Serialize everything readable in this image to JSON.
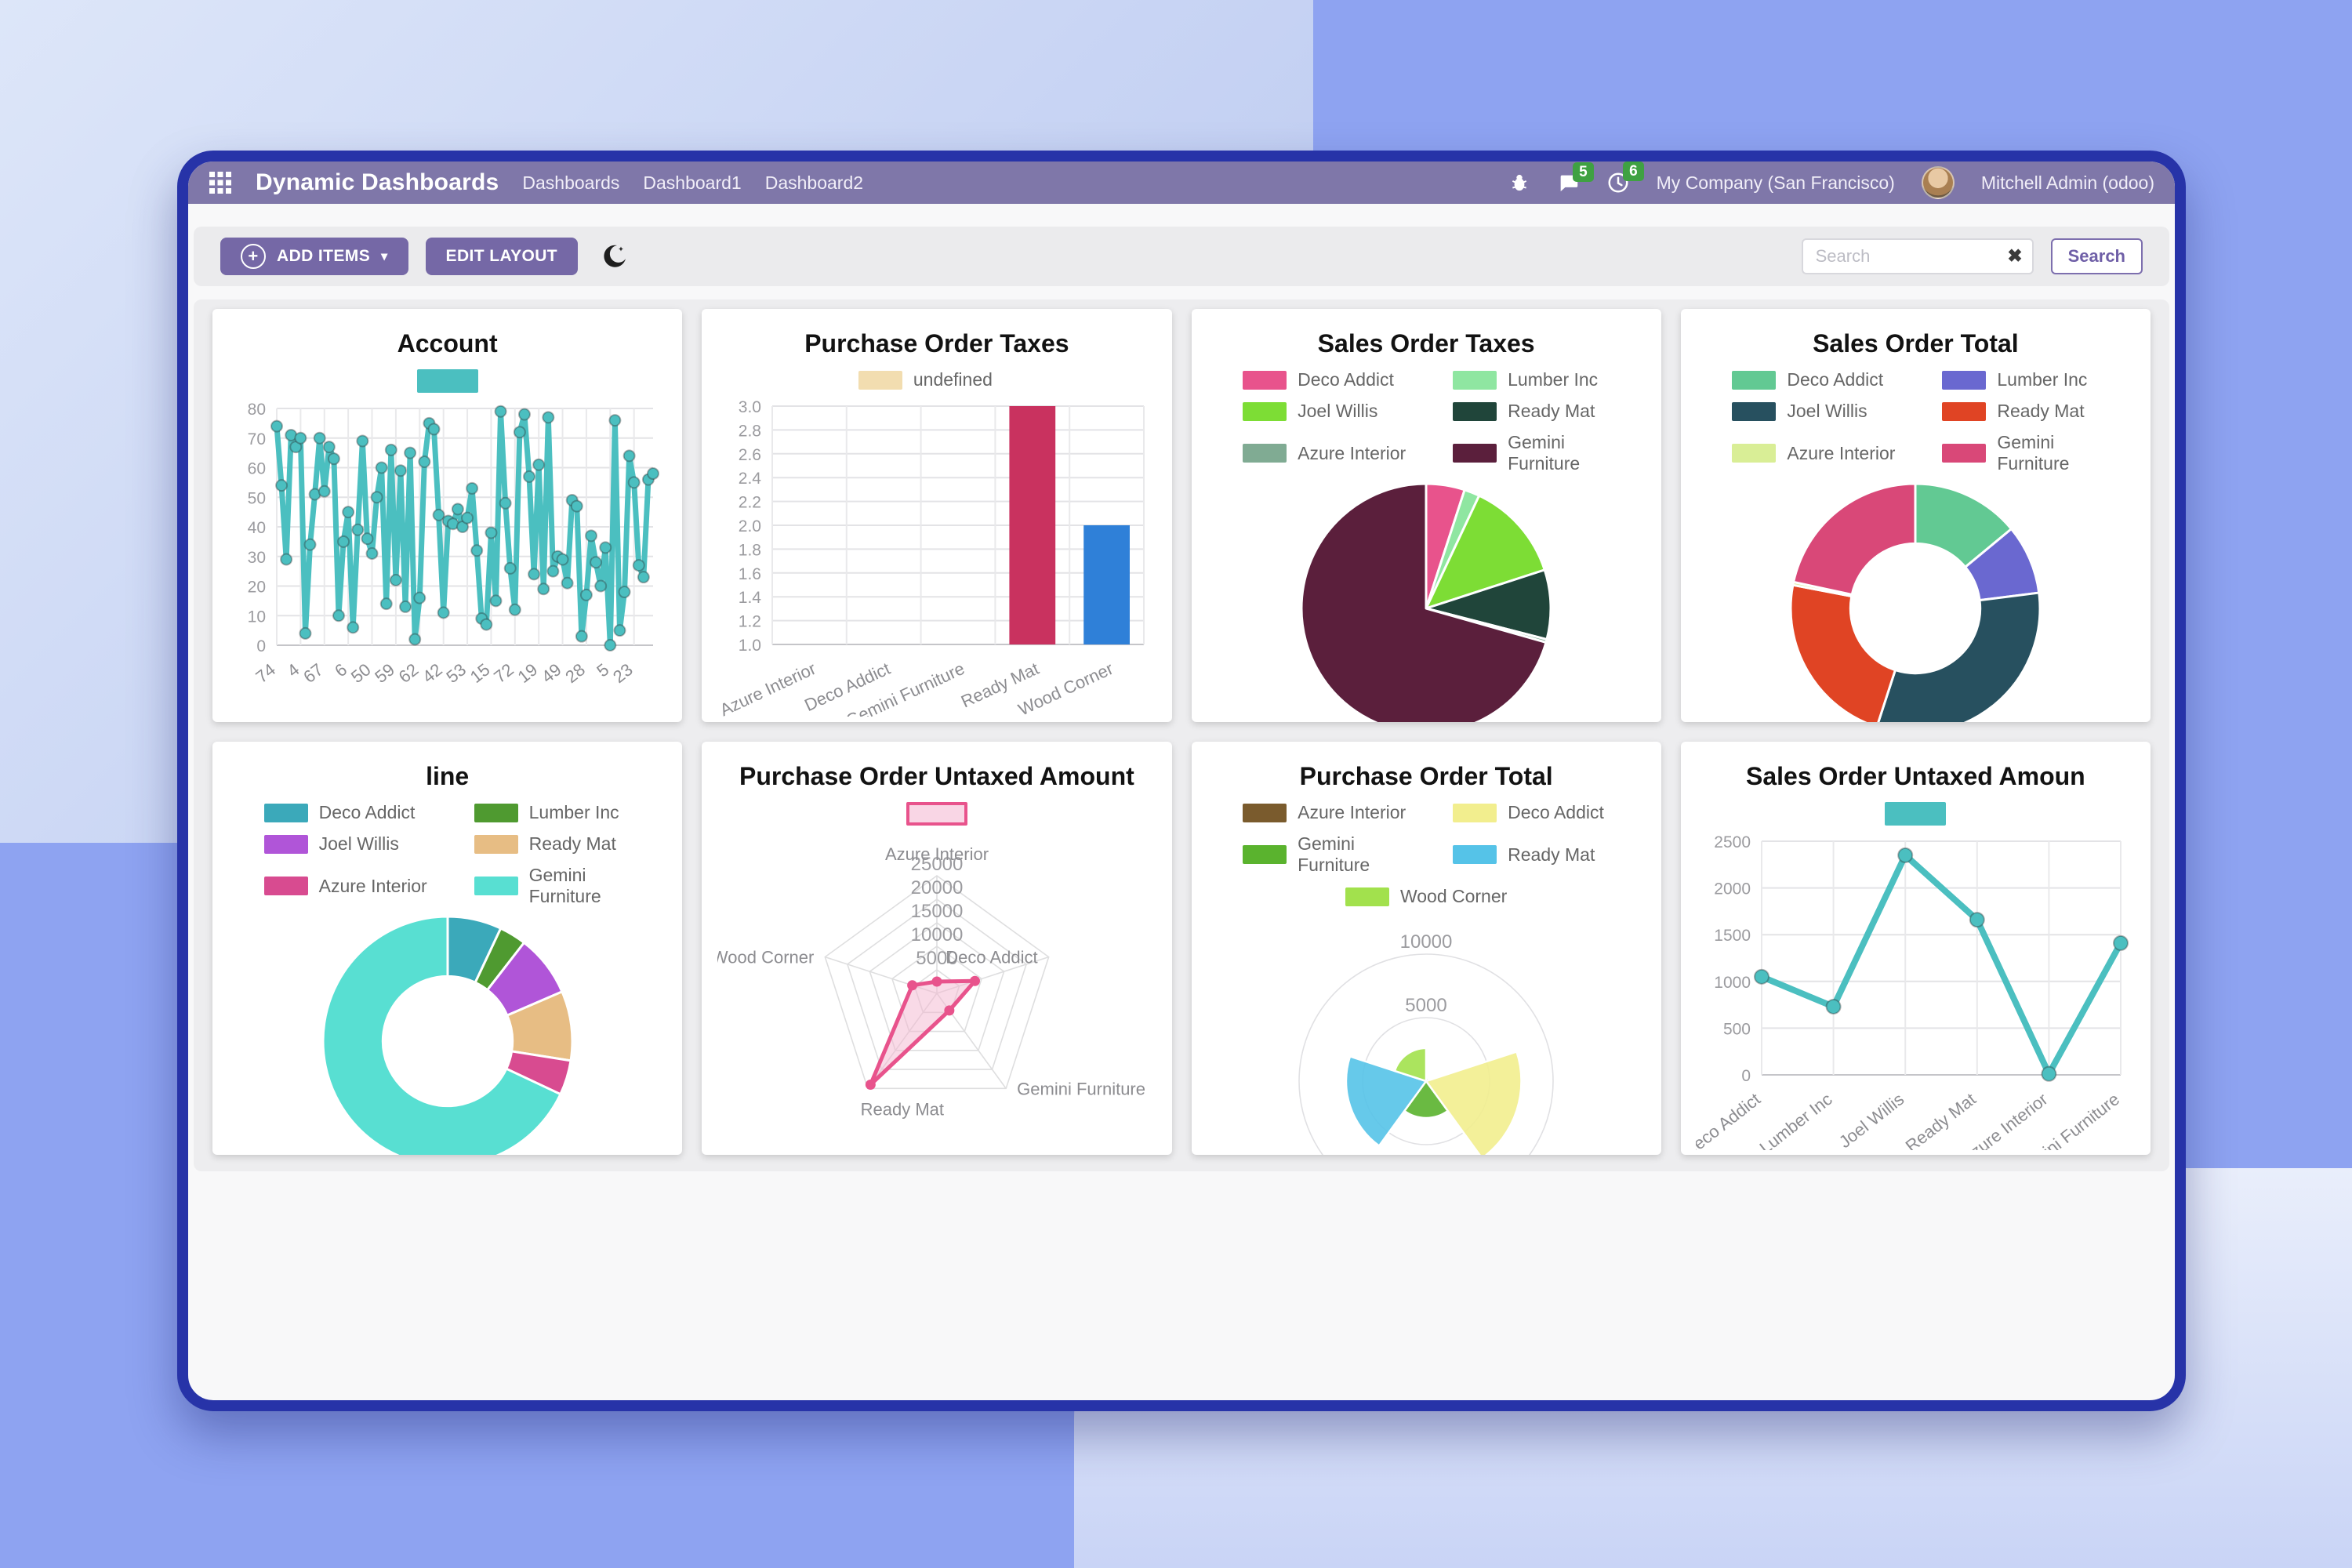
{
  "navbar": {
    "brand": "Dynamic Dashboards",
    "links": [
      "Dashboards",
      "Dashboard1",
      "Dashboard2"
    ],
    "badges": {
      "messages": "5",
      "activities": "6"
    },
    "company": "My Company (San Francisco)",
    "user": "Mitchell Admin (odoo)"
  },
  "toolbar": {
    "add_items": "ADD ITEMS",
    "edit_layout": "EDIT LAYOUT",
    "search_placeholder": "Search",
    "search_button": "Search"
  },
  "icons": {
    "apps": "grid-3x3",
    "debug": "bug",
    "messages": "chat-bubble",
    "activities": "clock",
    "dark_mode": "moon",
    "add": "plus-circle",
    "caret": "caret-down",
    "search_clear": "x"
  },
  "colors": {
    "accent_purple": "#7568a6",
    "navbar": "#7f77a9",
    "window_border": "#2733a8",
    "teal": "#4bbfc0",
    "badge_green": "#3fa142"
  },
  "chart_data": [
    {
      "type": "line",
      "title": "Account",
      "legend": [
        {
          "label": "",
          "color": "#4bbfc0"
        }
      ],
      "color": "#4bbfc0",
      "ylim": [
        0,
        80
      ],
      "ystep": 10,
      "grid": true,
      "label_every": 5,
      "x_tick_labels": [
        "74",
        "4",
        "67",
        "6",
        "50",
        "59",
        "62",
        "42",
        "53",
        "15",
        "72",
        "19",
        "49",
        "28",
        "5",
        "23"
      ],
      "values": [
        74,
        54,
        29,
        71,
        67,
        70,
        4,
        34,
        51,
        70,
        52,
        67,
        63,
        10,
        35,
        45,
        6,
        39,
        69,
        36,
        31,
        50,
        60,
        14,
        66,
        22,
        59,
        13,
        65,
        2,
        16,
        62,
        75,
        73,
        44,
        11,
        42,
        41,
        46,
        40,
        43,
        53,
        32,
        9,
        7,
        38,
        15,
        79,
        48,
        26,
        12,
        72,
        78,
        57,
        24,
        61,
        19,
        77,
        25,
        30,
        29,
        21,
        49,
        47,
        3,
        17,
        37,
        28,
        20,
        33,
        0,
        76,
        5,
        18,
        64,
        55,
        27,
        23,
        56,
        58
      ]
    },
    {
      "type": "bar",
      "title": "Purchase Order Taxes",
      "legend": [
        {
          "label": "undefined",
          "color": "#f2ddb0"
        }
      ],
      "categories": [
        "Azure Interior",
        "Deco Addict",
        "Gemini Furniture",
        "Ready Mat",
        "Wood Corner"
      ],
      "values": [
        null,
        null,
        null,
        3,
        2
      ],
      "bar_colors": [
        "",
        "",
        "",
        "#c9325f",
        "#2f80d8"
      ],
      "ylim": [
        1.0,
        3.0
      ],
      "ystep": 0.2,
      "ydec": 1,
      "grid": true
    },
    {
      "type": "pie",
      "title": "Sales Order Taxes",
      "categories": [
        "Deco Addict",
        "Lumber Inc",
        "Joel Willis",
        "Ready Mat",
        "Azure Interior",
        "Gemini Furniture"
      ],
      "values": [
        5,
        2,
        13,
        9,
        0.4,
        70.6
      ],
      "colors": [
        "#e8538c",
        "#8fe6a1",
        "#7ddd35",
        "#20453a",
        "#80ab93",
        "#5b1f3c"
      ],
      "legend": [
        {
          "label": "Deco Addict",
          "color": "#e8538c"
        },
        {
          "label": "Lumber Inc",
          "color": "#8fe6a1"
        },
        {
          "label": "Joel Willis",
          "color": "#7ddd35"
        },
        {
          "label": "Ready Mat",
          "color": "#20453a"
        },
        {
          "label": "Azure Interior",
          "color": "#80ab93"
        },
        {
          "label": "Gemini Furniture",
          "color": "#5b1f3c"
        }
      ]
    },
    {
      "type": "doughnut",
      "title": "Sales Order Total",
      "categories": [
        "Deco Addict",
        "Lumber Inc",
        "Joel Willis",
        "Ready Mat",
        "Azure Interior",
        "Gemini Furniture"
      ],
      "values": [
        14,
        9,
        32,
        23,
        0.4,
        21.6
      ],
      "colors": [
        "#62c993",
        "#6a68d0",
        "#27505f",
        "#e04424",
        "#d9ee96",
        "#d94878"
      ],
      "legend": [
        {
          "label": "Deco Addict",
          "color": "#62c993"
        },
        {
          "label": "Lumber Inc",
          "color": "#6a68d0"
        },
        {
          "label": "Joel Willis",
          "color": "#27505f"
        },
        {
          "label": "Ready Mat",
          "color": "#e04424"
        },
        {
          "label": "Azure Interior",
          "color": "#d9ee96"
        },
        {
          "label": "Gemini Furniture",
          "color": "#d94878"
        }
      ]
    },
    {
      "type": "doughnut",
      "title": "line",
      "categories": [
        "Deco Addict",
        "Lumber Inc",
        "Joel Willis",
        "Ready Mat",
        "Azure Interior",
        "Gemini Furniture"
      ],
      "values": [
        7,
        3.5,
        8,
        9,
        4.5,
        68
      ],
      "colors": [
        "#3ba9ba",
        "#4f9a30",
        "#b055d8",
        "#e7bd84",
        "#d84b90",
        "#58dfd2"
      ],
      "legend": [
        {
          "label": "Deco Addict",
          "color": "#3ba9ba"
        },
        {
          "label": "Lumber Inc",
          "color": "#4f9a30"
        },
        {
          "label": "Joel Willis",
          "color": "#b055d8"
        },
        {
          "label": "Ready Mat",
          "color": "#e7bd84"
        },
        {
          "label": "Azure Interior",
          "color": "#d84b90"
        },
        {
          "label": "Gemini Furniture",
          "color": "#58dfd2"
        }
      ]
    },
    {
      "type": "radar",
      "title": "Purchase Order Untaxed Amount",
      "legend": [
        {
          "label": "",
          "color": "#f9d6e5",
          "border": "#e8538c"
        }
      ],
      "axes": [
        "Azure Interior",
        "Deco Addict",
        "Gemini Furniture",
        "Ready Mat",
        "Wood Corner"
      ],
      "max": 25000,
      "step": 5000,
      "tick_labels": [
        "5000",
        "10000",
        "15000",
        "20000",
        "25000"
      ],
      "values": [
        2500,
        8500,
        4500,
        24000,
        5500
      ],
      "color": "#e8538c",
      "fill": "rgba(243,182,208,0.5)"
    },
    {
      "type": "polar",
      "title": "Purchase Order Total",
      "categories": [
        "Azure Interior",
        "Deco Addict",
        "Gemini Furniture",
        "Ready Mat",
        "Wood Corner"
      ],
      "values": [
        250,
        7500,
        2900,
        6300,
        2600
      ],
      "colors": [
        "#7a5b2d",
        "#f2ee8e",
        "#5ab32e",
        "#55c3e8",
        "#a2e14d"
      ],
      "rings": [
        5000,
        10000
      ],
      "max": 10000,
      "legend": [
        {
          "label": "Azure Interior",
          "color": "#7a5b2d"
        },
        {
          "label": "Deco Addict",
          "color": "#f2ee8e"
        },
        {
          "label": "Gemini Furniture",
          "color": "#5ab32e"
        },
        {
          "label": "Ready Mat",
          "color": "#55c3e8"
        },
        {
          "label": "Wood Corner",
          "color": "#a2e14d"
        }
      ]
    },
    {
      "type": "line",
      "title": "Sales Order Untaxed Amoun",
      "legend": [
        {
          "label": "",
          "color": "#4bbfc0"
        }
      ],
      "color": "#4bbfc0",
      "ylim": [
        0,
        2500
      ],
      "ystep": 500,
      "grid": true,
      "categories": [
        "Deco Addict",
        "Lumber Inc",
        "Joel Willis",
        "Ready Mat",
        "Azure Interior",
        "Gemini Furniture"
      ],
      "values": [
        1050,
        730,
        2350,
        1660,
        10,
        1410
      ]
    }
  ]
}
